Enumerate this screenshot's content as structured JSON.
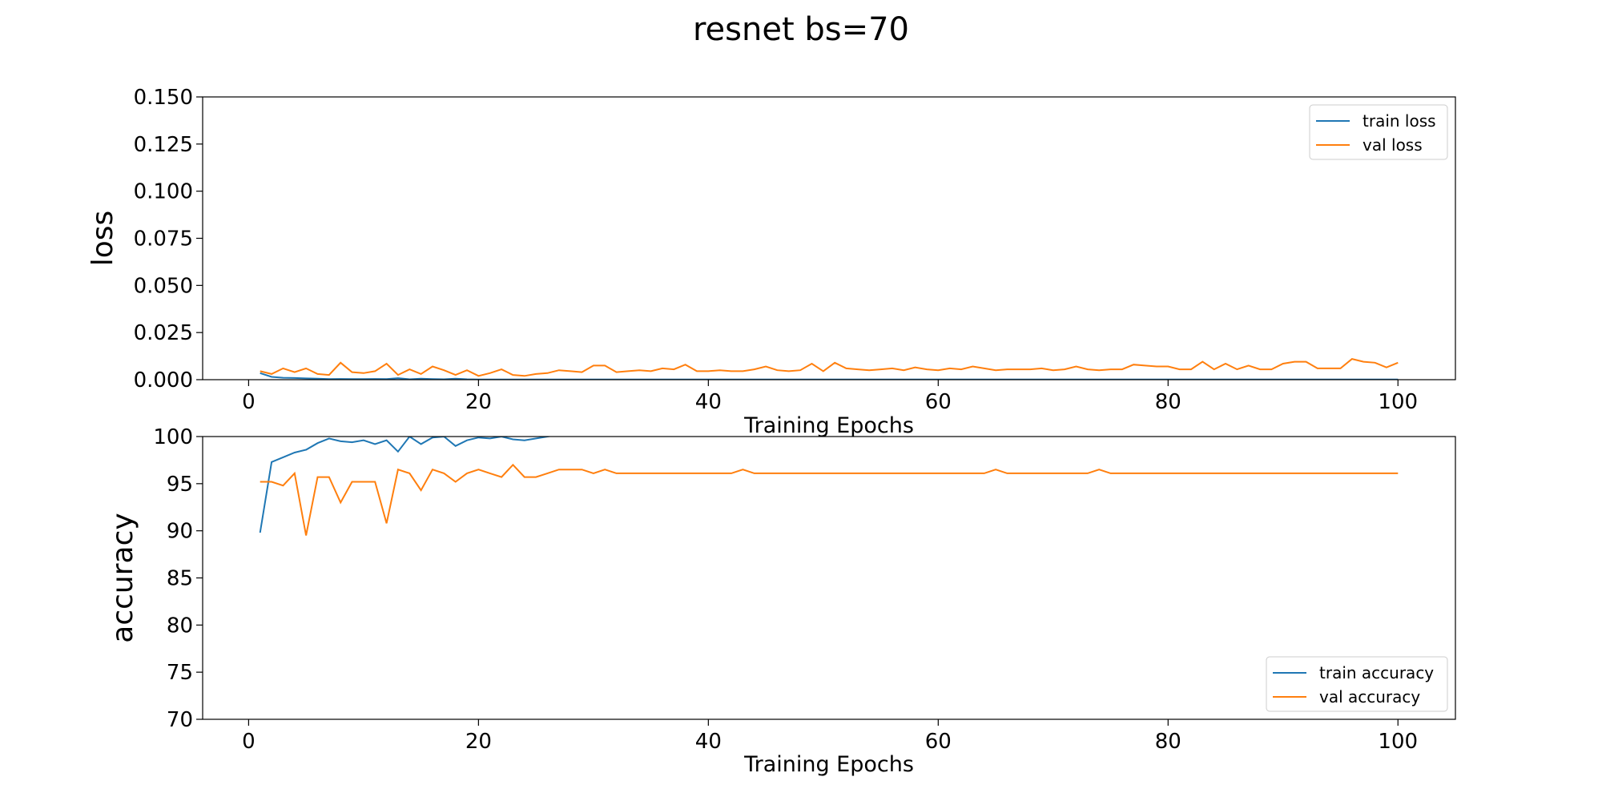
{
  "title": "resnet bs=70",
  "colors": {
    "train": "#1f77b4",
    "val": "#ff7f0e"
  },
  "chart_data": [
    {
      "type": "line",
      "xlabel": "Training Epochs",
      "ylabel": "loss",
      "xlim": [
        -4,
        105
      ],
      "ylim": [
        0,
        0.15
      ],
      "xticks": [
        0,
        20,
        40,
        60,
        80,
        100
      ],
      "yticks": [
        0.0,
        0.025,
        0.05,
        0.075,
        0.1,
        0.125,
        0.15
      ],
      "ytick_labels": [
        "0.000",
        "0.025",
        "0.050",
        "0.075",
        "0.100",
        "0.125",
        "0.150"
      ],
      "xtick_labels": [
        "0",
        "20",
        "40",
        "60",
        "80",
        "100"
      ],
      "legend": "top-right",
      "grid": false,
      "series": [
        {
          "name": "train loss",
          "color": "#1f77b4",
          "x": [
            1,
            2,
            3,
            4,
            5,
            6,
            7,
            8,
            9,
            10,
            11,
            12,
            13,
            14,
            15,
            16,
            17,
            18,
            19,
            20,
            21,
            22,
            23,
            24,
            25,
            26,
            27,
            28,
            29,
            30,
            35,
            40,
            50,
            60,
            70,
            80,
            90,
            100
          ],
          "y": [
            0.0035,
            0.0015,
            0.001,
            0.0009,
            0.0007,
            0.0005,
            0.0003,
            0.0004,
            0.0003,
            0.0003,
            0.0004,
            0.0003,
            0.0008,
            0.0002,
            0.0005,
            0.0003,
            0.0002,
            0.0005,
            0.0002,
            0.0001,
            0.0001,
            0.0001,
            0.0001,
            0.0001,
            0.0001,
            0.0001,
            0.0001,
            0.0001,
            0.0001,
            0.0001,
            0.0001,
            0.0001,
            0.0001,
            0.0001,
            0.0001,
            0.0001,
            0.0001,
            0.0001
          ]
        },
        {
          "name": "val loss",
          "color": "#ff7f0e",
          "x": [
            1,
            2,
            3,
            4,
            5,
            6,
            7,
            8,
            9,
            10,
            11,
            12,
            13,
            14,
            15,
            16,
            17,
            18,
            19,
            20,
            21,
            22,
            23,
            24,
            25,
            26,
            27,
            28,
            29,
            30,
            31,
            32,
            33,
            34,
            35,
            36,
            37,
            38,
            39,
            40,
            41,
            42,
            43,
            44,
            45,
            46,
            47,
            48,
            49,
            50,
            51,
            52,
            53,
            54,
            55,
            56,
            57,
            58,
            59,
            60,
            61,
            62,
            63,
            64,
            65,
            66,
            67,
            68,
            69,
            70,
            71,
            72,
            73,
            74,
            75,
            76,
            77,
            78,
            79,
            80,
            81,
            82,
            83,
            84,
            85,
            86,
            87,
            88,
            89,
            90,
            91,
            92,
            93,
            94,
            95,
            96,
            97,
            98,
            99,
            100
          ],
          "y": [
            0.0045,
            0.003,
            0.006,
            0.004,
            0.006,
            0.003,
            0.0025,
            0.009,
            0.004,
            0.0035,
            0.0045,
            0.0085,
            0.0025,
            0.0055,
            0.003,
            0.007,
            0.005,
            0.0025,
            0.005,
            0.002,
            0.0035,
            0.0055,
            0.0025,
            0.002,
            0.003,
            0.0035,
            0.005,
            0.0045,
            0.004,
            0.0075,
            0.0075,
            0.004,
            0.0045,
            0.005,
            0.0045,
            0.006,
            0.0055,
            0.008,
            0.0045,
            0.0045,
            0.005,
            0.0045,
            0.0045,
            0.0055,
            0.007,
            0.005,
            0.0045,
            0.005,
            0.0085,
            0.0045,
            0.009,
            0.006,
            0.0055,
            0.005,
            0.0055,
            0.006,
            0.005,
            0.0065,
            0.0055,
            0.005,
            0.006,
            0.0055,
            0.007,
            0.006,
            0.005,
            0.0055,
            0.0055,
            0.0055,
            0.006,
            0.005,
            0.0055,
            0.007,
            0.0055,
            0.005,
            0.0055,
            0.0055,
            0.008,
            0.0075,
            0.007,
            0.007,
            0.0055,
            0.0055,
            0.0095,
            0.0055,
            0.0085,
            0.0055,
            0.0075,
            0.0055,
            0.0055,
            0.0085,
            0.0095,
            0.0095,
            0.006,
            0.006,
            0.006,
            0.011,
            0.0095,
            0.009,
            0.0065,
            0.009
          ]
        }
      ]
    },
    {
      "type": "line",
      "xlabel": "Training Epochs",
      "ylabel": "accuracy",
      "xlim": [
        -4,
        105
      ],
      "ylim": [
        70,
        100
      ],
      "xticks": [
        0,
        20,
        40,
        60,
        80,
        100
      ],
      "yticks": [
        70,
        75,
        80,
        85,
        90,
        95,
        100
      ],
      "ytick_labels": [
        "70",
        "75",
        "80",
        "85",
        "90",
        "95",
        "100"
      ],
      "xtick_labels": [
        "0",
        "20",
        "40",
        "60",
        "80",
        "100"
      ],
      "legend": "bottom-right",
      "grid": false,
      "series": [
        {
          "name": "train accuracy",
          "color": "#1f77b4",
          "x": [
            1,
            2,
            3,
            4,
            5,
            6,
            7,
            8,
            9,
            10,
            11,
            12,
            13,
            14,
            15,
            16,
            17,
            18,
            19,
            20,
            21,
            22,
            23,
            24,
            25,
            26,
            27,
            30,
            40,
            50,
            60,
            70,
            80,
            90,
            100
          ],
          "y": [
            89.8,
            97.3,
            97.8,
            98.3,
            98.6,
            99.3,
            99.8,
            99.5,
            99.4,
            99.6,
            99.2,
            99.6,
            98.4,
            100.0,
            99.2,
            99.9,
            100.0,
            99.0,
            99.6,
            99.9,
            99.8,
            100.0,
            99.7,
            99.6,
            99.8,
            100.0,
            100.2,
            100.2,
            100.2,
            100.2,
            100.2,
            100.2,
            100.2,
            100.2,
            100.2
          ]
        },
        {
          "name": "val accuracy",
          "color": "#ff7f0e",
          "x": [
            1,
            2,
            3,
            4,
            5,
            6,
            7,
            8,
            9,
            10,
            11,
            12,
            13,
            14,
            15,
            16,
            17,
            18,
            19,
            20,
            21,
            22,
            23,
            24,
            25,
            26,
            27,
            28,
            29,
            30,
            31,
            32,
            42,
            43,
            44,
            64,
            65,
            66,
            73,
            74,
            75,
            100
          ],
          "y": [
            95.2,
            95.2,
            94.8,
            96.1,
            89.5,
            95.7,
            95.7,
            93.0,
            95.2,
            95.2,
            95.2,
            90.8,
            96.5,
            96.1,
            94.3,
            96.5,
            96.1,
            95.2,
            96.1,
            96.5,
            96.1,
            95.7,
            97.0,
            95.7,
            95.7,
            96.1,
            96.5,
            96.5,
            96.5,
            96.1,
            96.5,
            96.1,
            96.1,
            96.5,
            96.1,
            96.1,
            96.5,
            96.1,
            96.1,
            96.5,
            96.1,
            96.1
          ]
        }
      ]
    }
  ]
}
